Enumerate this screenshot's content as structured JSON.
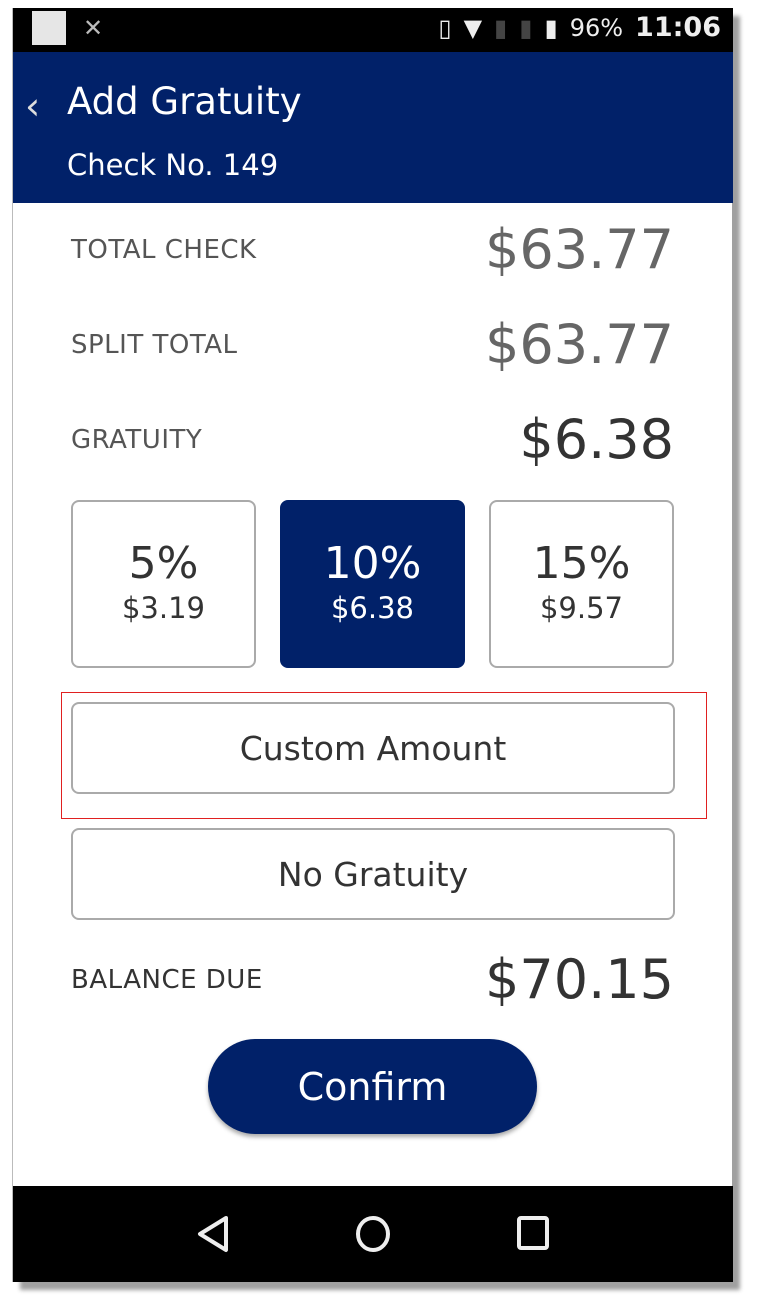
{
  "status_bar": {
    "battery": "96%",
    "time": "11:06"
  },
  "header": {
    "title": "Add Gratuity",
    "subtitle": "Check No. 149"
  },
  "summary": {
    "total_check": {
      "label": "TOTAL CHECK",
      "value": "$63.77"
    },
    "split_total": {
      "label": "SPLIT TOTAL",
      "value": "$63.77"
    },
    "gratuity": {
      "label": "GRATUITY",
      "value": "$6.38"
    }
  },
  "options": [
    {
      "percent": "5%",
      "amount": "$3.19",
      "selected": false
    },
    {
      "percent": "10%",
      "amount": "$6.38",
      "selected": true
    },
    {
      "percent": "15%",
      "amount": "$9.57",
      "selected": false
    }
  ],
  "custom_amount_label": "Custom Amount",
  "no_gratuity_label": "No Gratuity",
  "balance_due": {
    "label": "BALANCE DUE",
    "value": "$70.15"
  },
  "confirm_label": "Confirm",
  "colors": {
    "brand": "#012169",
    "highlight": "#e02020"
  }
}
